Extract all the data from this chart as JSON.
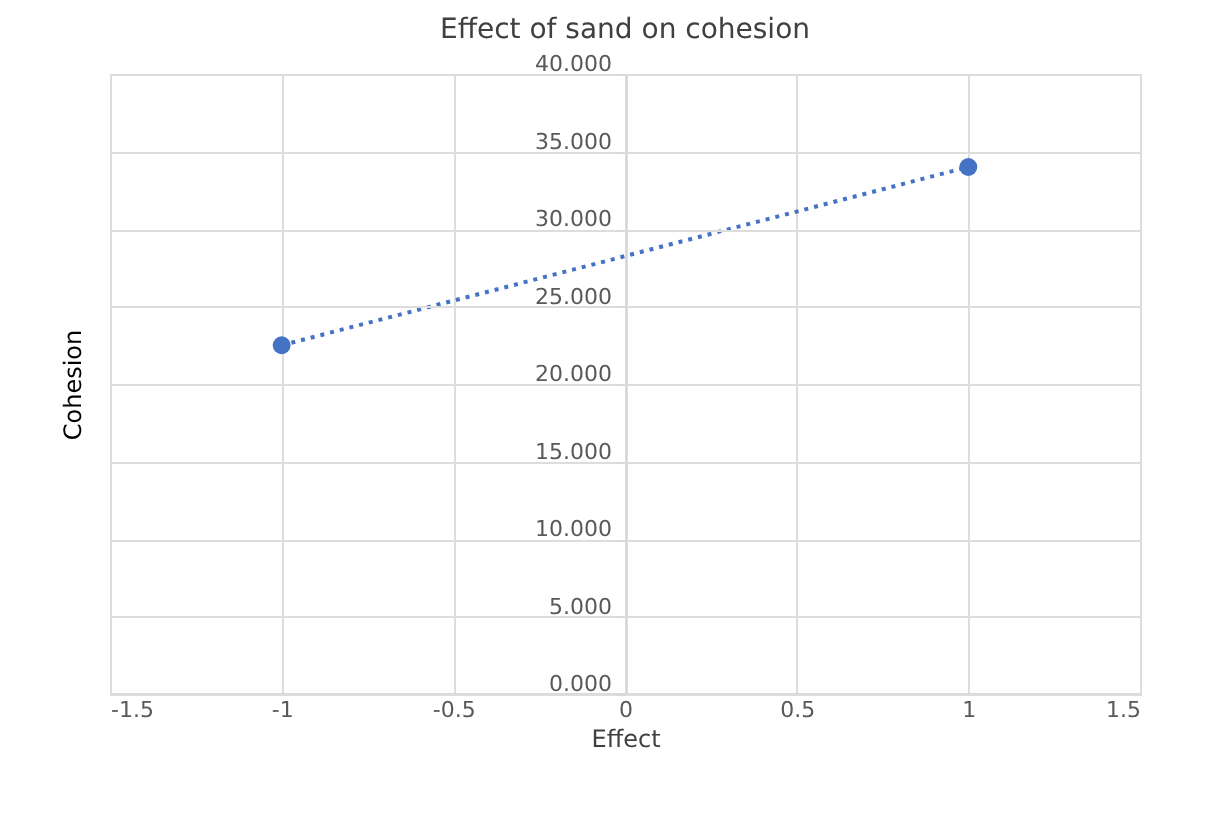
{
  "chart_data": {
    "type": "line",
    "title": "Effect of sand on cohesion",
    "xlabel": "Effect",
    "ylabel": "Cohesion",
    "x": [
      -1,
      1
    ],
    "series": [
      {
        "color": "#4472c4",
        "values": [
          22.5,
          34.0
        ]
      }
    ],
    "xlim": [
      -1.5,
      1.5
    ],
    "xticks": [
      -1.5,
      -1,
      -0.5,
      0,
      0.5,
      1,
      1.5
    ],
    "ylim": [
      0,
      40
    ],
    "yticks": [
      {
        "value": 0,
        "label": "0.000"
      },
      {
        "value": 5,
        "label": "5.000"
      },
      {
        "value": 10,
        "label": "10.000"
      },
      {
        "value": 15,
        "label": "15.000"
      },
      {
        "value": 20,
        "label": "20.000"
      },
      {
        "value": 25,
        "label": "25.000"
      },
      {
        "value": 30,
        "label": "30.000"
      },
      {
        "value": 35,
        "label": "35.000"
      },
      {
        "value": 40,
        "label": "40.000"
      }
    ],
    "grid": true,
    "marker": "circle",
    "line_style": "dotted"
  }
}
